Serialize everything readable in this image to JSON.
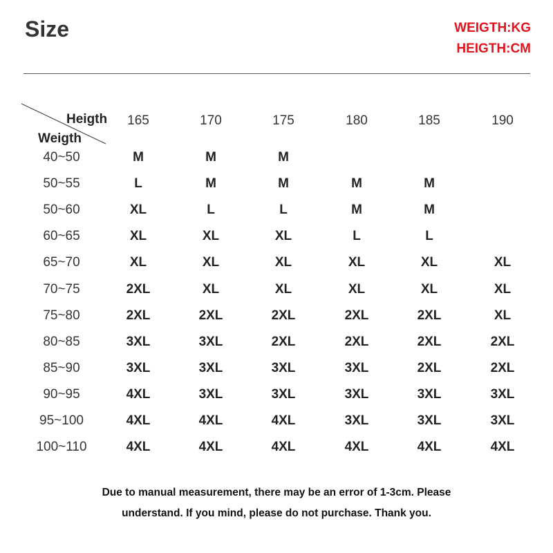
{
  "title": "Size",
  "units": {
    "weight": "WEIGTH:KG",
    "height": "HEIGTH:CM"
  },
  "table": {
    "corner_height_label": "Heigth",
    "corner_weight_label": "Weigth",
    "heights": [
      "165",
      "170",
      "175",
      "180",
      "185",
      "190"
    ],
    "rows": [
      {
        "weight": "40~50",
        "sizes": [
          "M",
          "M",
          "M",
          "",
          "",
          ""
        ]
      },
      {
        "weight": "50~55",
        "sizes": [
          "L",
          "M",
          "M",
          "M",
          "M",
          ""
        ]
      },
      {
        "weight": "50~60",
        "sizes": [
          "XL",
          "L",
          "L",
          "M",
          "M",
          ""
        ]
      },
      {
        "weight": "60~65",
        "sizes": [
          "XL",
          "XL",
          "XL",
          "L",
          "L",
          ""
        ]
      },
      {
        "weight": "65~70",
        "sizes": [
          "XL",
          "XL",
          "XL",
          "XL",
          "XL",
          "XL"
        ]
      },
      {
        "weight": "70~75",
        "sizes": [
          "2XL",
          "XL",
          "XL",
          "XL",
          "XL",
          "XL"
        ]
      },
      {
        "weight": "75~80",
        "sizes": [
          "2XL",
          "2XL",
          "2XL",
          "2XL",
          "2XL",
          "XL"
        ]
      },
      {
        "weight": "80~85",
        "sizes": [
          "3XL",
          "3XL",
          "2XL",
          "2XL",
          "2XL",
          "2XL"
        ]
      },
      {
        "weight": "85~90",
        "sizes": [
          "3XL",
          "3XL",
          "3XL",
          "3XL",
          "2XL",
          "2XL"
        ]
      },
      {
        "weight": "90~95",
        "sizes": [
          "4XL",
          "3XL",
          "3XL",
          "3XL",
          "3XL",
          "3XL"
        ]
      },
      {
        "weight": "95~100",
        "sizes": [
          "4XL",
          "4XL",
          "4XL",
          "3XL",
          "3XL",
          "3XL"
        ]
      },
      {
        "weight": "100~110",
        "sizes": [
          "4XL",
          "4XL",
          "4XL",
          "4XL",
          "4XL",
          "4XL"
        ]
      }
    ]
  },
  "note": {
    "line1": "Due to manual measurement, there may be an error of 1-3cm. Please",
    "line2": "understand. If you mind, please do not purchase. Thank you."
  },
  "colors": {
    "units": "#e0141e",
    "text": "#222222"
  }
}
